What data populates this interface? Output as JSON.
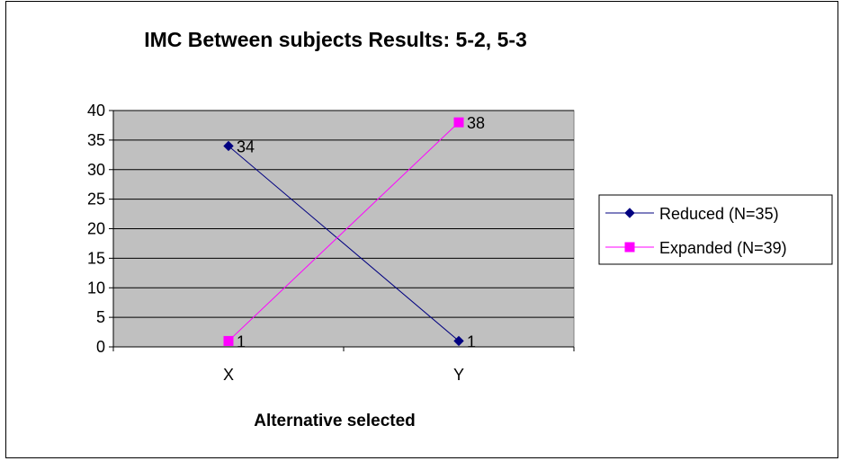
{
  "chart_data": {
    "type": "line",
    "title": "IMC Between subjects Results: 5-2, 5-3",
    "xlabel": "Alternative selected",
    "ylabel": "",
    "categories": [
      "X",
      "Y"
    ],
    "ylim": [
      0,
      40
    ],
    "ytick_step": 5,
    "yticks": [
      "0",
      "5",
      "10",
      "15",
      "20",
      "25",
      "30",
      "35",
      "40"
    ],
    "grid": true,
    "legend_position": "right",
    "series": [
      {
        "name": "Reduced (N=35)",
        "values": [
          34,
          1
        ],
        "color": "#000080",
        "marker": "diamond",
        "labels": [
          "34",
          "1"
        ]
      },
      {
        "name": "Expanded (N=39)",
        "values": [
          1,
          38
        ],
        "color": "#ff00ff",
        "marker": "square",
        "labels": [
          "1",
          "38"
        ]
      }
    ],
    "plot_background": "#c0c0c0"
  }
}
